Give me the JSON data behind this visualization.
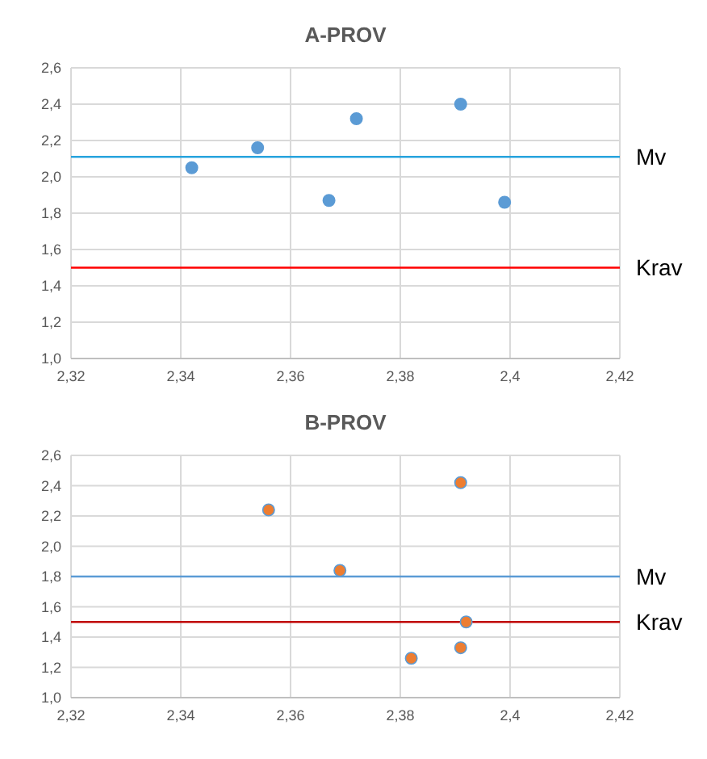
{
  "chart_data": [
    {
      "type": "scatter",
      "title": "A-PROV",
      "marker": "circle",
      "grid": true,
      "series": [
        {
          "color": "#5b9bd5",
          "x": [
            2.342,
            2.354,
            2.367,
            2.372,
            2.391,
            2.399
          ],
          "values": [
            2.05,
            2.16,
            1.87,
            2.32,
            2.4,
            1.86
          ]
        }
      ],
      "xlim": [
        2.32,
        2.42
      ],
      "xticks": [
        {
          "value": 2.32,
          "label": "2,32"
        },
        {
          "value": 2.34,
          "label": "2,34"
        },
        {
          "value": 2.36,
          "label": "2,36"
        },
        {
          "value": 2.38,
          "label": "2,38"
        },
        {
          "value": 2.4,
          "label": "2,4"
        },
        {
          "value": 2.42,
          "label": "2,42"
        }
      ],
      "ylim": [
        1.0,
        2.6
      ],
      "yticks": [
        {
          "value": 1.0,
          "label": "1,0"
        },
        {
          "value": 1.2,
          "label": "1,2"
        },
        {
          "value": 1.4,
          "label": "1,4"
        },
        {
          "value": 1.6,
          "label": "1,6"
        },
        {
          "value": 1.8,
          "label": "1,8"
        },
        {
          "value": 2.0,
          "label": "2,0"
        },
        {
          "value": 2.2,
          "label": "2,2"
        },
        {
          "value": 2.4,
          "label": "2,4"
        },
        {
          "value": 2.6,
          "label": "2,6"
        }
      ],
      "ref_lines": [
        {
          "axis": "y",
          "value": 2.11,
          "label": "Mv",
          "color": "#27a3dd"
        },
        {
          "axis": "y",
          "value": 1.5,
          "label": "Krav",
          "color": "#ff0000"
        }
      ]
    },
    {
      "type": "scatter",
      "title": "B-PROV",
      "marker": "circle",
      "grid": true,
      "series": [
        {
          "color": "#ed7d31",
          "x": [
            2.356,
            2.369,
            2.391,
            2.392,
            2.391,
            2.382
          ],
          "values": [
            2.24,
            1.84,
            2.42,
            1.5,
            1.33,
            1.26
          ]
        }
      ],
      "xlim": [
        2.32,
        2.42
      ],
      "xticks": [
        {
          "value": 2.32,
          "label": "2,32"
        },
        {
          "value": 2.34,
          "label": "2,34"
        },
        {
          "value": 2.36,
          "label": "2,36"
        },
        {
          "value": 2.38,
          "label": "2,38"
        },
        {
          "value": 2.4,
          "label": "2,4"
        },
        {
          "value": 2.42,
          "label": "2,42"
        }
      ],
      "ylim": [
        1.0,
        2.6
      ],
      "yticks": [
        {
          "value": 1.0,
          "label": "1,0"
        },
        {
          "value": 1.2,
          "label": "1,2"
        },
        {
          "value": 1.4,
          "label": "1,4"
        },
        {
          "value": 1.6,
          "label": "1,6"
        },
        {
          "value": 1.8,
          "label": "1,8"
        },
        {
          "value": 2.0,
          "label": "2,0"
        },
        {
          "value": 2.2,
          "label": "2,2"
        },
        {
          "value": 2.4,
          "label": "2,4"
        },
        {
          "value": 2.6,
          "label": "2,6"
        }
      ],
      "ref_lines": [
        {
          "axis": "y",
          "value": 1.8,
          "label": "Mv",
          "color": "#5b9bd5"
        },
        {
          "axis": "y",
          "value": 1.5,
          "label": "Krav",
          "color": "#c00000"
        }
      ]
    }
  ]
}
